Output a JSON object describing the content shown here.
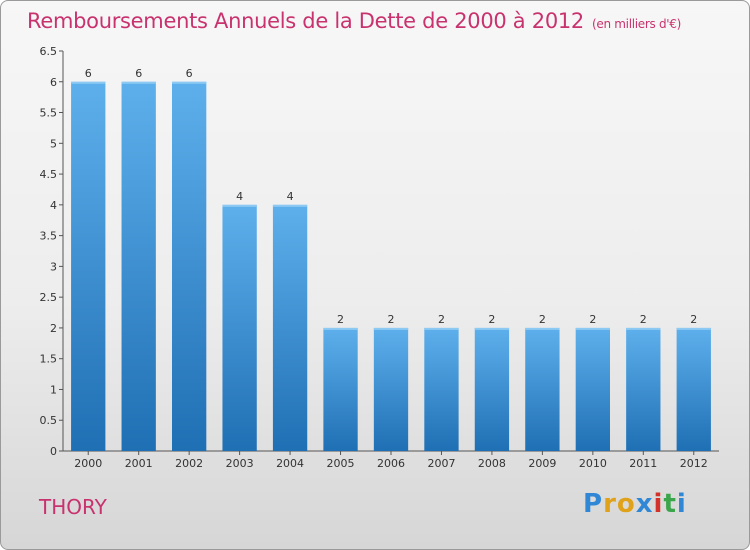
{
  "title": "Remboursements Annuels de la Dette de 2000 à 2012",
  "subtitle": "(en milliers d'€)",
  "commune": "THORY",
  "logo": [
    "P",
    "r",
    "o",
    "x",
    "i",
    "t",
    "i"
  ],
  "colors": {
    "title": "#c8326e",
    "bar_top": "#5eb0ec",
    "bar_bottom": "#1f6fb4"
  },
  "chart_data": {
    "type": "bar",
    "categories": [
      "2000",
      "2001",
      "2002",
      "2003",
      "2004",
      "2005",
      "2006",
      "2007",
      "2008",
      "2009",
      "2010",
      "2011",
      "2012"
    ],
    "values": [
      6,
      6,
      6,
      4,
      4,
      2,
      2,
      2,
      2,
      2,
      2,
      2,
      2
    ],
    "data_labels": [
      "6",
      "6",
      "6",
      "4",
      "4",
      "2",
      "2",
      "2",
      "2",
      "2",
      "2",
      "2",
      "2"
    ],
    "title": "Remboursements Annuels de la Dette de 2000 à 2012",
    "ylim": [
      0,
      6.5
    ],
    "yticks": [
      "0",
      "0.5",
      "1",
      "1.5",
      "2",
      "2.5",
      "3",
      "3.5",
      "4",
      "4.5",
      "5",
      "5.5",
      "6",
      "6.5"
    ],
    "grid": false
  }
}
